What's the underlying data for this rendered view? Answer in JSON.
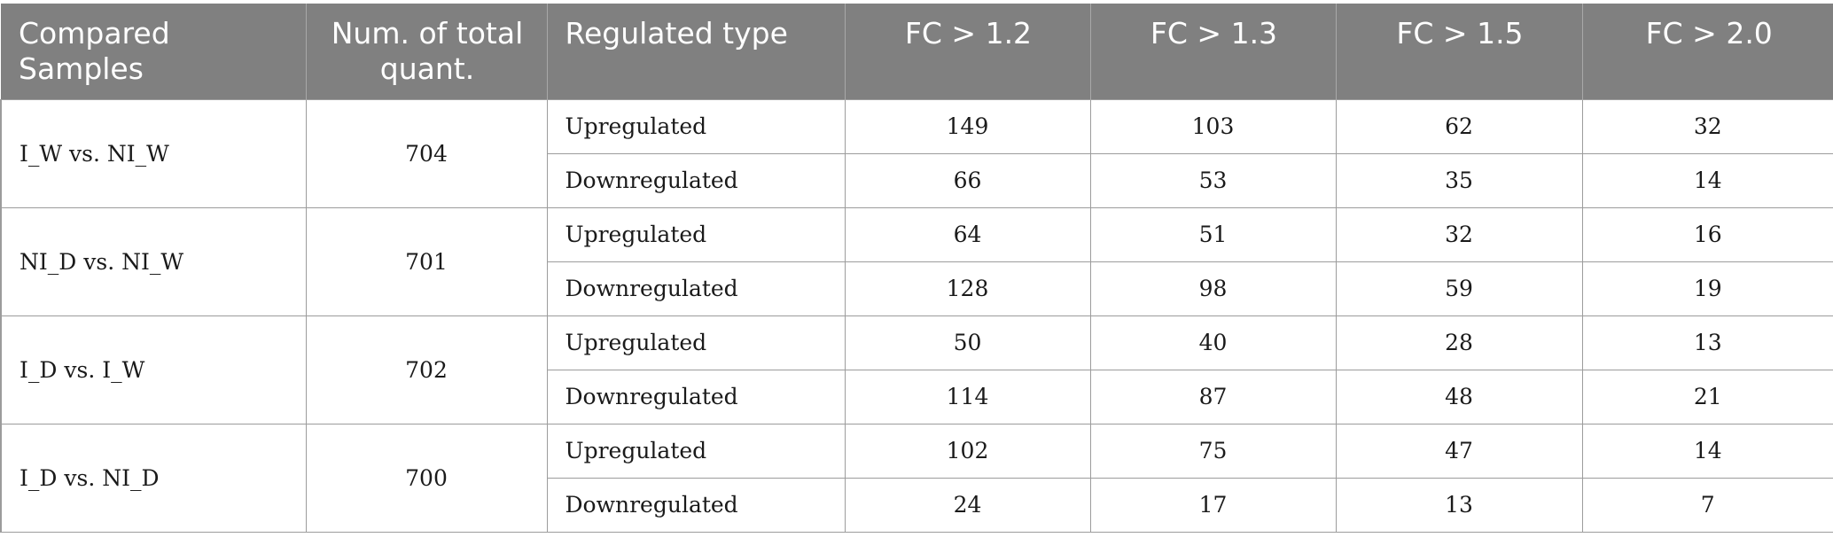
{
  "table": {
    "headers": [
      "Compared Samples",
      "Num. of total quant.",
      "Regulated type",
      "FC > 1.2",
      "FC > 1.3",
      "FC > 1.5",
      "FC > 2.0"
    ],
    "groups": [
      {
        "sample": "I_W vs. NI_W",
        "total": "704",
        "rows": [
          {
            "type": "Upregulated",
            "values": [
              "149",
              "103",
              "62",
              "32"
            ]
          },
          {
            "type": "Downregulated",
            "values": [
              "66",
              "53",
              "35",
              "14"
            ]
          }
        ]
      },
      {
        "sample": "NI_D vs. NI_W",
        "total": "701",
        "rows": [
          {
            "type": "Upregulated",
            "values": [
              "64",
              "51",
              "32",
              "16"
            ]
          },
          {
            "type": "Downregulated",
            "values": [
              "128",
              "98",
              "59",
              "19"
            ]
          }
        ]
      },
      {
        "sample": "I_D vs. I_W",
        "total": "702",
        "rows": [
          {
            "type": "Upregulated",
            "values": [
              "50",
              "40",
              "28",
              "13"
            ]
          },
          {
            "type": "Downregulated",
            "values": [
              "114",
              "87",
              "48",
              "21"
            ]
          }
        ]
      },
      {
        "sample": "I_D vs. NI_D",
        "total": "700",
        "rows": [
          {
            "type": "Upregulated",
            "values": [
              "102",
              "75",
              "47",
              "14"
            ]
          },
          {
            "type": "Downregulated",
            "values": [
              "24",
              "17",
              "13",
              "7"
            ]
          }
        ]
      }
    ]
  },
  "colors": {
    "header_bg": "#808080",
    "header_text": "#ffffff",
    "border": "#9c9c9c"
  }
}
